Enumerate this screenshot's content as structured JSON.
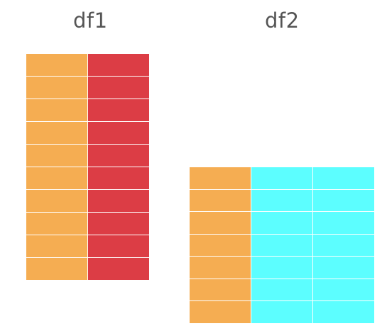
{
  "df1": {
    "title": "df1",
    "rows": 10,
    "columns": [
      "#F5AD52",
      "#DC3D45"
    ]
  },
  "df2": {
    "title": "df2",
    "rows": 7,
    "columns": [
      "#F5AD52",
      "#5CFEFF",
      "#5CFEFF"
    ]
  }
}
